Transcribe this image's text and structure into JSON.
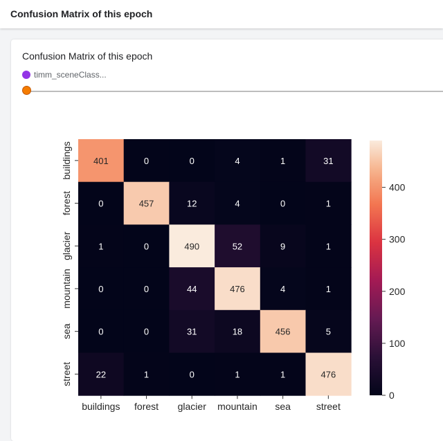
{
  "header": {
    "title": "Confusion Matrix of this epoch"
  },
  "card": {
    "title": "Confusion Matrix of this epoch",
    "run_label": "timm_sceneClass...",
    "run_color": "#9334e6",
    "slider_value": 0
  },
  "chart_data": {
    "type": "heatmap",
    "colormap": "rocket",
    "rows": [
      "buildings",
      "forest",
      "glacier",
      "mountain",
      "sea",
      "street"
    ],
    "columns": [
      "buildings",
      "forest",
      "glacier",
      "mountain",
      "sea",
      "street"
    ],
    "values": [
      [
        401,
        0,
        0,
        4,
        1,
        31
      ],
      [
        0,
        457,
        12,
        4,
        0,
        1
      ],
      [
        1,
        0,
        490,
        52,
        9,
        1
      ],
      [
        0,
        0,
        44,
        476,
        4,
        1
      ],
      [
        0,
        0,
        31,
        18,
        456,
        5
      ],
      [
        22,
        1,
        0,
        1,
        1,
        476
      ]
    ],
    "colorbar": {
      "min": 0,
      "max": 490,
      "ticks": [
        0,
        100,
        200,
        300,
        400
      ]
    }
  }
}
